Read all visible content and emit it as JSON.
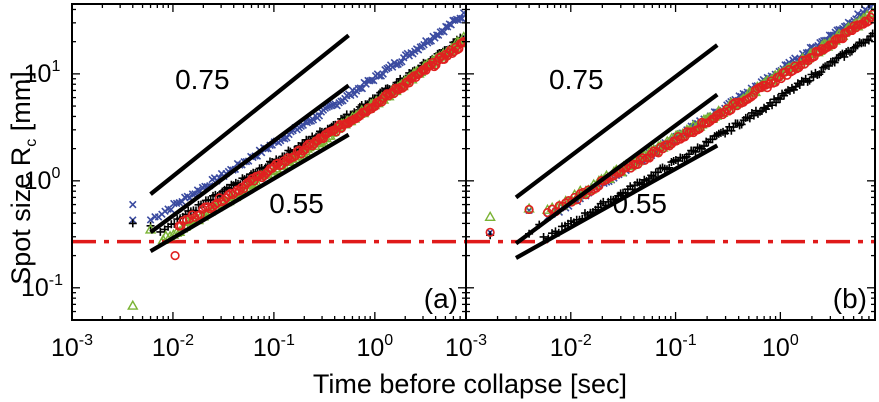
{
  "xlabel": "Time before collapse [sec]",
  "ylabel_main": "Spot size R",
  "ylabel_sub": "c",
  "ylabel_unit": " [mm]",
  "colors": {
    "blue": "#3b4ba0",
    "black": "#000000",
    "green": "#7ab334",
    "red": "#e02020",
    "ref": "#e01a1a"
  },
  "chart_data": [
    {
      "type": "scatter",
      "panel_label": "(a)",
      "xscale": "log",
      "yscale": "log",
      "xlim": [
        0.001,
        8
      ],
      "ylim": [
        0.05,
        45
      ],
      "xticks": [
        {
          "base": "10",
          "exp": "-3",
          "value": 0.001
        },
        {
          "base": "10",
          "exp": "-2",
          "value": 0.01
        },
        {
          "base": "10",
          "exp": "-1",
          "value": 0.1
        },
        {
          "base": "10",
          "exp": "0",
          "value": 1
        }
      ],
      "yticks": [
        {
          "base": "10",
          "exp": "-1",
          "value": 0.1
        },
        {
          "base": "10",
          "exp": "0",
          "value": 1
        },
        {
          "base": "10",
          "exp": "1",
          "value": 10
        }
      ],
      "reference_line_y": 0.27,
      "power_laws": [
        {
          "label": "0.75",
          "x": [
            0.006,
            0.55
          ],
          "y": [
            0.75,
            22.9
          ]
        },
        {
          "label": "",
          "x": [
            0.006,
            0.55
          ],
          "y": [
            0.33,
            7.8
          ]
        },
        {
          "label": "0.55",
          "x": [
            0.006,
            0.55
          ],
          "y": [
            0.22,
            2.7
          ]
        }
      ],
      "annotations": [
        {
          "text": "0.75",
          "x": 0.0105,
          "y": 7.2
        },
        {
          "text": "0.55",
          "x": 0.09,
          "y": 0.5
        }
      ],
      "series": [
        {
          "color": "blue",
          "marker": "x",
          "t0": 0.006,
          "a": 0.58,
          "b": 0.58,
          "outliers": [
            [
              0.004,
              0.6
            ],
            [
              0.004,
              0.43
            ]
          ]
        },
        {
          "color": "black",
          "marker": "+",
          "t0": 0.0075,
          "a": 0.41,
          "b": 0.56,
          "outliers": [
            [
              0.004,
              0.4
            ],
            [
              0.006,
              0.38
            ]
          ]
        },
        {
          "color": "green",
          "marker": "triangle",
          "t0": 0.0085,
          "a": 0.32,
          "b": 0.59,
          "outliers": [
            [
              0.004,
              0.068
            ],
            [
              0.006,
              0.35
            ],
            [
              0.008,
              0.28
            ]
          ]
        },
        {
          "color": "red",
          "marker": "circle",
          "t0": 0.0115,
          "a": 0.36,
          "b": 0.56,
          "outliers": [
            [
              0.0105,
              0.2
            ],
            [
              0.012,
              0.38
            ]
          ]
        }
      ]
    },
    {
      "type": "scatter",
      "panel_label": "(b)",
      "xscale": "log",
      "yscale": "log",
      "xlim": [
        0.001,
        8
      ],
      "ylim": [
        0.05,
        45
      ],
      "xticks": [
        {
          "base": "10",
          "exp": "-3",
          "value": 0.001
        },
        {
          "base": "10",
          "exp": "-2",
          "value": 0.01
        },
        {
          "base": "10",
          "exp": "-1",
          "value": 0.1
        },
        {
          "base": "10",
          "exp": "0",
          "value": 1
        }
      ],
      "yticks": [],
      "reference_line_y": 0.27,
      "power_laws": [
        {
          "label": "0.75",
          "x": [
            0.003,
            0.25
          ],
          "y": [
            0.7,
            18.6
          ]
        },
        {
          "label": "",
          "x": [
            0.003,
            0.25
          ],
          "y": [
            0.26,
            6.4
          ]
        },
        {
          "label": "0.55",
          "x": [
            0.003,
            0.25
          ],
          "y": [
            0.19,
            2.14
          ]
        }
      ],
      "annotations": [
        {
          "text": "0.75",
          "x": 0.0062,
          "y": 7.2
        },
        {
          "text": "0.55",
          "x": 0.025,
          "y": 0.5
        }
      ],
      "series": [
        {
          "color": "blue",
          "marker": "x",
          "t0": 0.006,
          "a": 0.62,
          "b": 0.6,
          "outliers": [
            [
              0.0017,
              0.33
            ],
            [
              0.004,
              0.53
            ]
          ]
        },
        {
          "color": "black",
          "marker": "+",
          "t0": 0.0055,
          "a": 0.4,
          "b": 0.57,
          "outliers": [
            [
              0.0017,
              0.31
            ],
            [
              0.004,
              0.32
            ],
            [
              0.005,
              0.39
            ]
          ]
        },
        {
          "color": "green",
          "marker": "triangle",
          "t0": 0.006,
          "a": 0.68,
          "b": 0.56,
          "outliers": [
            [
              0.0017,
              0.46
            ],
            [
              0.004,
              0.55
            ]
          ]
        },
        {
          "color": "red",
          "marker": "circle",
          "t0": 0.006,
          "a": 0.65,
          "b": 0.56,
          "outliers": [
            [
              0.0017,
              0.33
            ],
            [
              0.004,
              0.54
            ]
          ]
        }
      ]
    }
  ]
}
